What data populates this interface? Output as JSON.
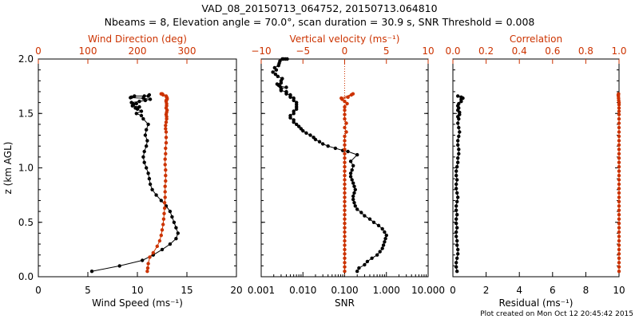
{
  "header": {
    "title_line1": "VAD_08_20150713_064752, 20150713.064810",
    "title_line2": "Nbeams = 8, Elevation angle = 70.0°, scan duration = 30.9 s, SNR Threshold = 0.008"
  },
  "footer": {
    "text": "Plot created on Mon Oct 12 20:45:42 2015"
  },
  "colors": {
    "primary": "#000000",
    "secondary": "#cc3300"
  },
  "chart_data": [
    {
      "type": "line",
      "panel": "left",
      "ylabel": "z (km AGL)",
      "ylim": [
        0,
        2.0
      ],
      "y_ticks": [
        "0.0",
        "0.5",
        "1.0",
        "1.5",
        "2.0"
      ],
      "bottom_axis": {
        "label": "Wind Speed (ms⁻¹)",
        "range": [
          0,
          20
        ],
        "ticks": [
          "0",
          "5",
          "10",
          "15",
          "20"
        ]
      },
      "top_axis": {
        "label": "Wind Direction (deg)",
        "range": [
          0,
          400
        ],
        "ticks": [
          "0",
          "100",
          "200",
          "300"
        ]
      },
      "series": [
        {
          "axis": "bottom",
          "color": "#000000",
          "x": [
            5.4,
            8.2,
            10.5,
            11.6,
            12.5,
            13.3,
            13.9,
            14.1,
            13.9,
            13.7,
            13.5,
            13.3,
            12.9,
            12.4,
            11.9,
            11.5,
            11.3,
            11.2,
            11.1,
            10.9,
            10.7,
            10.6,
            10.7,
            10.9,
            11.0,
            10.8,
            10.9,
            11.1,
            10.6,
            10.4,
            9.9,
            10.4,
            10.0,
            9.8,
            10.2,
            9.5,
            9.6,
            9.9,
            9.4,
            10.2,
            10.8,
            11.3,
            10.6,
            9.3,
            9.4,
            9.7,
            10.7,
            11.1,
            11.2
          ],
          "y": [
            0.05,
            0.1,
            0.15,
            0.2,
            0.25,
            0.3,
            0.35,
            0.4,
            0.45,
            0.5,
            0.55,
            0.6,
            0.65,
            0.7,
            0.75,
            0.8,
            0.85,
            0.9,
            0.95,
            1.0,
            1.05,
            1.1,
            1.15,
            1.2,
            1.25,
            1.3,
            1.35,
            1.4,
            1.45,
            1.48,
            1.5,
            1.52,
            1.54,
            1.55,
            1.56,
            1.57,
            1.58,
            1.59,
            1.6,
            1.61,
            1.62,
            1.63,
            1.64,
            1.645,
            1.65,
            1.66,
            1.66,
            1.66,
            1.67
          ]
        },
        {
          "axis": "top",
          "color": "#cc3300",
          "x": [
            220,
            221,
            222,
            225,
            232,
            240,
            245,
            248,
            250,
            252,
            253,
            254,
            255,
            255,
            256,
            256,
            256,
            257,
            257,
            257,
            256,
            256,
            257,
            257,
            258,
            258,
            258,
            257,
            257,
            258,
            259,
            259,
            258,
            259,
            260,
            258,
            259,
            259,
            258,
            258,
            260,
            260,
            259,
            258,
            252,
            250,
            248
          ],
          "y": [
            0.05,
            0.08,
            0.12,
            0.18,
            0.22,
            0.28,
            0.33,
            0.38,
            0.43,
            0.48,
            0.53,
            0.58,
            0.63,
            0.68,
            0.73,
            0.78,
            0.83,
            0.88,
            0.93,
            0.98,
            1.03,
            1.08,
            1.13,
            1.18,
            1.23,
            1.28,
            1.33,
            1.36,
            1.39,
            1.42,
            1.45,
            1.47,
            1.49,
            1.51,
            1.53,
            1.55,
            1.57,
            1.59,
            1.61,
            1.62,
            1.63,
            1.64,
            1.65,
            1.66,
            1.67,
            1.68,
            1.68
          ]
        }
      ]
    },
    {
      "type": "line",
      "panel": "middle",
      "ylim": [
        0,
        2.0
      ],
      "bottom_axis": {
        "label": "SNR",
        "scale": "log",
        "range": [
          0.001,
          10
        ],
        "ticks": [
          "0.001",
          "0.010",
          "0.100",
          "1.000",
          "10.000"
        ]
      },
      "top_axis": {
        "label": "Vertical velocity (ms⁻¹)",
        "range": [
          -10,
          10
        ],
        "ticks": [
          "−10",
          "−5",
          "0",
          "5",
          "10"
        ]
      },
      "series": [
        {
          "axis": "bottom",
          "color": "#000000",
          "x": [
            0.2,
            0.22,
            0.3,
            0.35,
            0.45,
            0.6,
            0.7,
            0.8,
            0.85,
            0.9,
            0.95,
            1.0,
            0.9,
            0.8,
            0.65,
            0.5,
            0.4,
            0.3,
            0.25,
            0.2,
            0.18,
            0.17,
            0.16,
            0.16,
            0.17,
            0.18,
            0.17,
            0.16,
            0.15,
            0.14,
            0.14,
            0.15,
            0.16,
            0.14,
            0.2,
            0.12,
            0.09,
            0.06,
            0.04,
            0.03,
            0.025,
            0.02,
            0.018,
            0.015,
            0.012,
            0.01,
            0.009,
            0.008,
            0.007,
            0.006,
            0.006,
            0.005,
            0.005,
            0.006,
            0.006,
            0.007,
            0.007,
            0.007,
            0.007,
            0.006,
            0.006,
            0.005,
            0.005,
            0.005,
            0.004,
            0.004,
            0.004,
            0.003,
            0.003,
            0.003,
            0.004,
            0.0028,
            0.0026,
            0.0024,
            0.003,
            0.003,
            0.0032,
            0.0025,
            0.0022,
            0.0019,
            0.0023,
            0.0021,
            0.0026,
            0.0027,
            0.0028,
            0.0032,
            0.0038,
            0.0034,
            0.0042
          ],
          "y": [
            0.05,
            0.08,
            0.11,
            0.14,
            0.17,
            0.2,
            0.23,
            0.26,
            0.29,
            0.32,
            0.35,
            0.38,
            0.41,
            0.44,
            0.47,
            0.5,
            0.53,
            0.56,
            0.59,
            0.62,
            0.65,
            0.68,
            0.71,
            0.74,
            0.77,
            0.8,
            0.83,
            0.86,
            0.89,
            0.92,
            0.95,
            0.98,
            1.02,
            1.06,
            1.12,
            1.15,
            1.16,
            1.18,
            1.2,
            1.22,
            1.24,
            1.26,
            1.28,
            1.3,
            1.32,
            1.34,
            1.36,
            1.38,
            1.4,
            1.42,
            1.44,
            1.46,
            1.48,
            1.5,
            1.52,
            1.54,
            1.56,
            1.58,
            1.6,
            1.62,
            1.64,
            1.65,
            1.66,
            1.67,
            1.68,
            1.69,
            1.7,
            1.71,
            1.72,
            1.73,
            1.74,
            1.75,
            1.76,
            1.77,
            1.78,
            1.8,
            1.82,
            1.84,
            1.86,
            1.88,
            1.9,
            1.92,
            1.94,
            1.96,
            1.98,
            2.0,
            2.0,
            2.0,
            2.0
          ]
        },
        {
          "axis": "top",
          "color": "#cc3300",
          "x": [
            0,
            0,
            0,
            0,
            0,
            0,
            0,
            0,
            0,
            0,
            0,
            0,
            0,
            0,
            0,
            0,
            0,
            0,
            0,
            0,
            0,
            0,
            0,
            0,
            0,
            0,
            0,
            0,
            0,
            0,
            0,
            0,
            0.2,
            0,
            0.2,
            0,
            0,
            0,
            0,
            0.3,
            0,
            -0.3,
            0.4,
            0.8,
            1.0,
            -0.4
          ],
          "y": [
            0.05,
            0.09,
            0.13,
            0.17,
            0.21,
            0.25,
            0.29,
            0.33,
            0.37,
            0.41,
            0.45,
            0.49,
            0.53,
            0.57,
            0.61,
            0.65,
            0.69,
            0.73,
            0.77,
            0.81,
            0.85,
            0.89,
            0.93,
            0.97,
            1.01,
            1.05,
            1.09,
            1.13,
            1.17,
            1.21,
            1.25,
            1.29,
            1.33,
            1.37,
            1.41,
            1.45,
            1.49,
            1.53,
            1.56,
            1.59,
            1.61,
            1.63,
            1.65,
            1.67,
            1.68,
            1.64
          ]
        }
      ]
    },
    {
      "type": "line",
      "panel": "right",
      "ylim": [
        0,
        2.0
      ],
      "bottom_axis": {
        "label": "Residual (ms⁻¹)",
        "range": [
          0,
          10
        ],
        "ticks": [
          "0",
          "2",
          "4",
          "6",
          "8",
          "10"
        ]
      },
      "top_axis": {
        "label": "Correlation",
        "range": [
          0,
          1.0
        ],
        "ticks": [
          "0.0",
          "0.2",
          "0.4",
          "0.6",
          "0.8",
          "1.0"
        ]
      },
      "series": [
        {
          "axis": "bottom",
          "color": "#000000",
          "x": [
            0.25,
            0.2,
            0.2,
            0.25,
            0.3,
            0.3,
            0.25,
            0.25,
            0.2,
            0.2,
            0.25,
            0.2,
            0.2,
            0.25,
            0.2,
            0.2,
            0.25,
            0.3,
            0.25,
            0.2,
            0.2,
            0.25,
            0.2,
            0.2,
            0.25,
            0.3,
            0.3,
            0.35,
            0.35,
            0.3,
            0.3,
            0.35,
            0.4,
            0.35,
            0.3,
            0.35,
            0.3,
            0.4,
            0.4,
            0.3,
            0.35,
            0.3,
            0.35,
            0.5,
            0.5,
            0.6,
            0.5,
            0.3
          ],
          "y": [
            0.05,
            0.09,
            0.13,
            0.17,
            0.21,
            0.25,
            0.29,
            0.33,
            0.37,
            0.41,
            0.45,
            0.49,
            0.53,
            0.57,
            0.61,
            0.65,
            0.69,
            0.73,
            0.77,
            0.81,
            0.85,
            0.89,
            0.93,
            0.97,
            1.01,
            1.05,
            1.09,
            1.13,
            1.17,
            1.21,
            1.25,
            1.29,
            1.33,
            1.37,
            1.41,
            1.45,
            1.47,
            1.49,
            1.51,
            1.53,
            1.55,
            1.57,
            1.59,
            1.61,
            1.63,
            1.64,
            1.65,
            1.66
          ]
        },
        {
          "axis": "top",
          "color": "#cc3300",
          "x": [
            1.0,
            1.0,
            1.0,
            1.0,
            1.0,
            1.0,
            1.0,
            1.0,
            1.0,
            1.0,
            1.0,
            1.0,
            1.0,
            1.0,
            1.0,
            1.0,
            1.0,
            1.0,
            1.0,
            1.0,
            1.0,
            1.0,
            1.0,
            1.0,
            1.0,
            1.0,
            1.0,
            1.0,
            1.0,
            1.0,
            1.0,
            1.0,
            1.0,
            1.0,
            1.0,
            1.0,
            1.0,
            1.0,
            1.0,
            1.0,
            1.0,
            0.998,
            0.997,
            0.996,
            0.995,
            0.997
          ],
          "y": [
            0.05,
            0.09,
            0.13,
            0.17,
            0.21,
            0.25,
            0.29,
            0.33,
            0.37,
            0.41,
            0.45,
            0.49,
            0.53,
            0.57,
            0.61,
            0.65,
            0.69,
            0.73,
            0.77,
            0.81,
            0.85,
            0.89,
            0.93,
            0.97,
            1.01,
            1.05,
            1.09,
            1.13,
            1.17,
            1.21,
            1.25,
            1.29,
            1.33,
            1.37,
            1.41,
            1.45,
            1.49,
            1.52,
            1.55,
            1.58,
            1.6,
            1.62,
            1.64,
            1.66,
            1.67,
            1.68
          ]
        }
      ]
    }
  ]
}
